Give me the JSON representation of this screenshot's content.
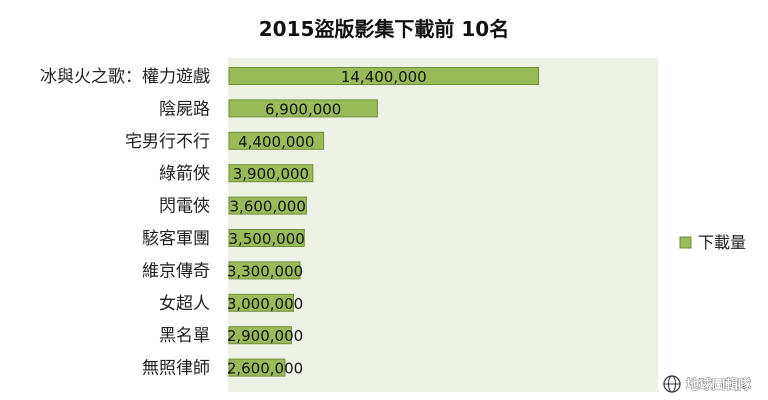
{
  "chart_data": {
    "type": "bar",
    "orientation": "horizontal",
    "title": "2015盜版影集下載前 10名",
    "categories": [
      "冰與火之歌：權力遊戲",
      "陰屍路",
      "宅男行不行",
      "綠箭俠",
      "閃電俠",
      "駭客軍團",
      "維京傳奇",
      "女超人",
      "黑名單",
      "無照律師"
    ],
    "series": [
      {
        "name": "下載量",
        "values": [
          14400000,
          6900000,
          4400000,
          3900000,
          3600000,
          3500000,
          3300000,
          3000000,
          2900000,
          2600000
        ],
        "labels": [
          "14,400,000",
          "6,900,000",
          "4,400,000",
          "3,900,000",
          "3,600,000",
          "3,500,000",
          "3,300,000",
          "3,000,000",
          "2,900,000",
          "2,600,000"
        ]
      }
    ],
    "xlim": [
      0,
      20000000
    ],
    "grid": false,
    "legend": "right",
    "colors": {
      "bar": "#9bbb59",
      "bar_border": "#6f8d3a",
      "plot_bg": "#eef2e4"
    }
  },
  "watermark": {
    "text": "地球圖輯隊",
    "icon": "globe-icon"
  }
}
